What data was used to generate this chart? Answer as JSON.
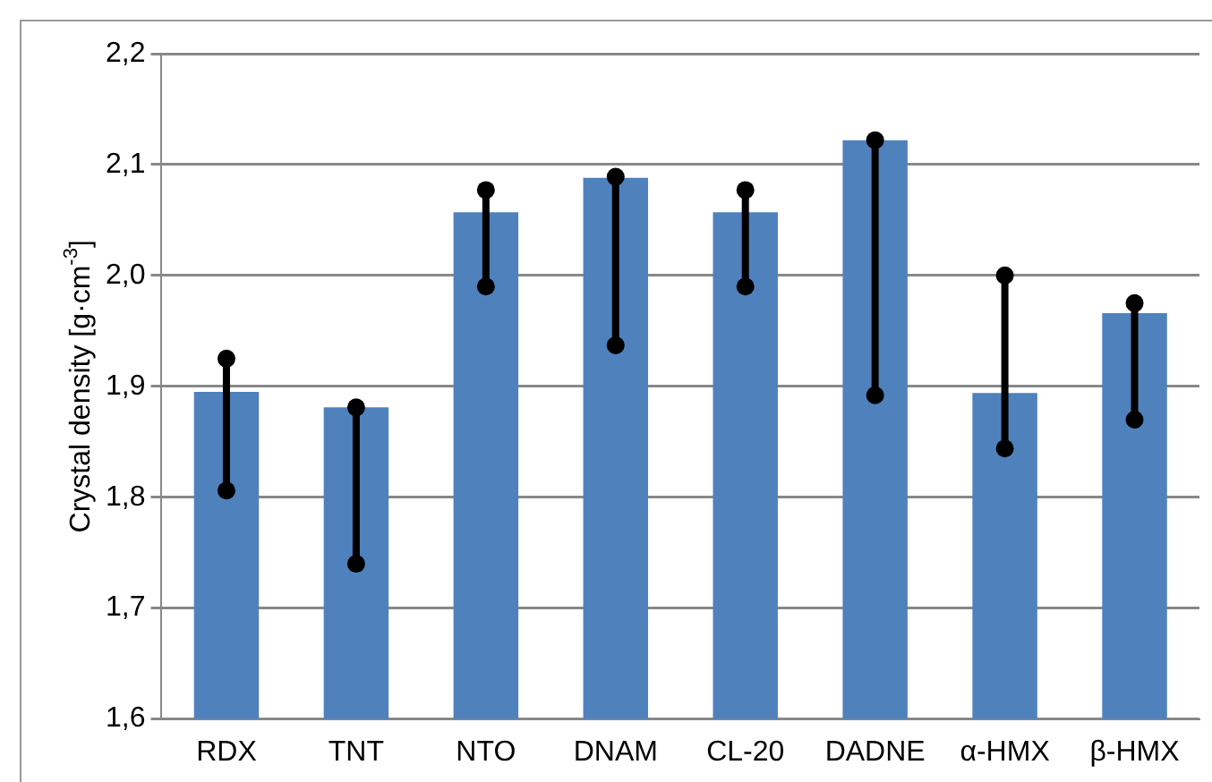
{
  "chart_data": {
    "type": "bar",
    "ylabel": "Crystal density [g·cm$^{-3}$]",
    "categories": [
      "RDX",
      "TNT",
      "NTO",
      "DNAM",
      "CL-20",
      "DADNE",
      "α-HMX",
      "β-HMX"
    ],
    "series": [
      {
        "color": "#4f81bd",
        "values": [
          1.895,
          1.881,
          2.057,
          2.088,
          2.057,
          2.122,
          1.894,
          1.966
        ],
        "name": null
      },
      {
        "type": "scatter",
        "color": "#000000",
        "values": [
          1.925,
          1.881,
          2.077,
          2.089,
          2.077,
          2.122,
          2.0,
          1.975
        ]
      },
      {
        "type": "scatter",
        "color": "#000000",
        "values": [
          1.806,
          1.74,
          1.99,
          1.937,
          1.99,
          1.892,
          1.844,
          1.87
        ]
      }
    ],
    "ylim": [
      1.6,
      2.2
    ],
    "yticks": [
      {
        "value": 1.6,
        "label": "1,6"
      },
      {
        "value": 1.7,
        "label": "1,7"
      },
      {
        "value": 1.8,
        "label": "1,8"
      },
      {
        "value": 1.9,
        "label": "1,9"
      },
      {
        "value": 2.0,
        "label": "2,0"
      },
      {
        "value": 2.1,
        "label": "2,1"
      },
      {
        "value": 2.2,
        "label": "2,2"
      }
    ],
    "grid": "y",
    "legend": false,
    "marker": "circle"
  }
}
